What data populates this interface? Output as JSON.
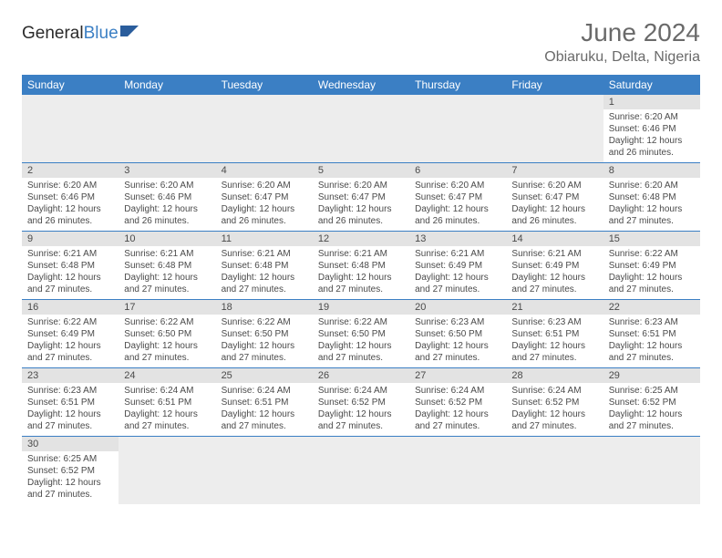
{
  "logo": {
    "part1": "General",
    "part2": "Blue"
  },
  "title": "June 2024",
  "location": "Obiaruku, Delta, Nigeria",
  "colors": {
    "header_bg": "#3b7fc4",
    "header_text": "#ffffff",
    "daynum_bg": "#e3e3e3",
    "cell_border": "#3b7fc4",
    "text": "#4a4a4a",
    "title_text": "#6a6a6a"
  },
  "weekdays": [
    "Sunday",
    "Monday",
    "Tuesday",
    "Wednesday",
    "Thursday",
    "Friday",
    "Saturday"
  ],
  "weeks": [
    {
      "days": [
        null,
        null,
        null,
        null,
        null,
        null,
        {
          "num": "1",
          "sunrise": "Sunrise: 6:20 AM",
          "sunset": "Sunset: 6:46 PM",
          "daylight": "Daylight: 12 hours and 26 minutes."
        }
      ]
    },
    {
      "days": [
        {
          "num": "2",
          "sunrise": "Sunrise: 6:20 AM",
          "sunset": "Sunset: 6:46 PM",
          "daylight": "Daylight: 12 hours and 26 minutes."
        },
        {
          "num": "3",
          "sunrise": "Sunrise: 6:20 AM",
          "sunset": "Sunset: 6:46 PM",
          "daylight": "Daylight: 12 hours and 26 minutes."
        },
        {
          "num": "4",
          "sunrise": "Sunrise: 6:20 AM",
          "sunset": "Sunset: 6:47 PM",
          "daylight": "Daylight: 12 hours and 26 minutes."
        },
        {
          "num": "5",
          "sunrise": "Sunrise: 6:20 AM",
          "sunset": "Sunset: 6:47 PM",
          "daylight": "Daylight: 12 hours and 26 minutes."
        },
        {
          "num": "6",
          "sunrise": "Sunrise: 6:20 AM",
          "sunset": "Sunset: 6:47 PM",
          "daylight": "Daylight: 12 hours and 26 minutes."
        },
        {
          "num": "7",
          "sunrise": "Sunrise: 6:20 AM",
          "sunset": "Sunset: 6:47 PM",
          "daylight": "Daylight: 12 hours and 26 minutes."
        },
        {
          "num": "8",
          "sunrise": "Sunrise: 6:20 AM",
          "sunset": "Sunset: 6:48 PM",
          "daylight": "Daylight: 12 hours and 27 minutes."
        }
      ]
    },
    {
      "days": [
        {
          "num": "9",
          "sunrise": "Sunrise: 6:21 AM",
          "sunset": "Sunset: 6:48 PM",
          "daylight": "Daylight: 12 hours and 27 minutes."
        },
        {
          "num": "10",
          "sunrise": "Sunrise: 6:21 AM",
          "sunset": "Sunset: 6:48 PM",
          "daylight": "Daylight: 12 hours and 27 minutes."
        },
        {
          "num": "11",
          "sunrise": "Sunrise: 6:21 AM",
          "sunset": "Sunset: 6:48 PM",
          "daylight": "Daylight: 12 hours and 27 minutes."
        },
        {
          "num": "12",
          "sunrise": "Sunrise: 6:21 AM",
          "sunset": "Sunset: 6:48 PM",
          "daylight": "Daylight: 12 hours and 27 minutes."
        },
        {
          "num": "13",
          "sunrise": "Sunrise: 6:21 AM",
          "sunset": "Sunset: 6:49 PM",
          "daylight": "Daylight: 12 hours and 27 minutes."
        },
        {
          "num": "14",
          "sunrise": "Sunrise: 6:21 AM",
          "sunset": "Sunset: 6:49 PM",
          "daylight": "Daylight: 12 hours and 27 minutes."
        },
        {
          "num": "15",
          "sunrise": "Sunrise: 6:22 AM",
          "sunset": "Sunset: 6:49 PM",
          "daylight": "Daylight: 12 hours and 27 minutes."
        }
      ]
    },
    {
      "days": [
        {
          "num": "16",
          "sunrise": "Sunrise: 6:22 AM",
          "sunset": "Sunset: 6:49 PM",
          "daylight": "Daylight: 12 hours and 27 minutes."
        },
        {
          "num": "17",
          "sunrise": "Sunrise: 6:22 AM",
          "sunset": "Sunset: 6:50 PM",
          "daylight": "Daylight: 12 hours and 27 minutes."
        },
        {
          "num": "18",
          "sunrise": "Sunrise: 6:22 AM",
          "sunset": "Sunset: 6:50 PM",
          "daylight": "Daylight: 12 hours and 27 minutes."
        },
        {
          "num": "19",
          "sunrise": "Sunrise: 6:22 AM",
          "sunset": "Sunset: 6:50 PM",
          "daylight": "Daylight: 12 hours and 27 minutes."
        },
        {
          "num": "20",
          "sunrise": "Sunrise: 6:23 AM",
          "sunset": "Sunset: 6:50 PM",
          "daylight": "Daylight: 12 hours and 27 minutes."
        },
        {
          "num": "21",
          "sunrise": "Sunrise: 6:23 AM",
          "sunset": "Sunset: 6:51 PM",
          "daylight": "Daylight: 12 hours and 27 minutes."
        },
        {
          "num": "22",
          "sunrise": "Sunrise: 6:23 AM",
          "sunset": "Sunset: 6:51 PM",
          "daylight": "Daylight: 12 hours and 27 minutes."
        }
      ]
    },
    {
      "days": [
        {
          "num": "23",
          "sunrise": "Sunrise: 6:23 AM",
          "sunset": "Sunset: 6:51 PM",
          "daylight": "Daylight: 12 hours and 27 minutes."
        },
        {
          "num": "24",
          "sunrise": "Sunrise: 6:24 AM",
          "sunset": "Sunset: 6:51 PM",
          "daylight": "Daylight: 12 hours and 27 minutes."
        },
        {
          "num": "25",
          "sunrise": "Sunrise: 6:24 AM",
          "sunset": "Sunset: 6:51 PM",
          "daylight": "Daylight: 12 hours and 27 minutes."
        },
        {
          "num": "26",
          "sunrise": "Sunrise: 6:24 AM",
          "sunset": "Sunset: 6:52 PM",
          "daylight": "Daylight: 12 hours and 27 minutes."
        },
        {
          "num": "27",
          "sunrise": "Sunrise: 6:24 AM",
          "sunset": "Sunset: 6:52 PM",
          "daylight": "Daylight: 12 hours and 27 minutes."
        },
        {
          "num": "28",
          "sunrise": "Sunrise: 6:24 AM",
          "sunset": "Sunset: 6:52 PM",
          "daylight": "Daylight: 12 hours and 27 minutes."
        },
        {
          "num": "29",
          "sunrise": "Sunrise: 6:25 AM",
          "sunset": "Sunset: 6:52 PM",
          "daylight": "Daylight: 12 hours and 27 minutes."
        }
      ]
    },
    {
      "days": [
        {
          "num": "30",
          "sunrise": "Sunrise: 6:25 AM",
          "sunset": "Sunset: 6:52 PM",
          "daylight": "Daylight: 12 hours and 27 minutes."
        },
        null,
        null,
        null,
        null,
        null,
        null
      ]
    }
  ]
}
